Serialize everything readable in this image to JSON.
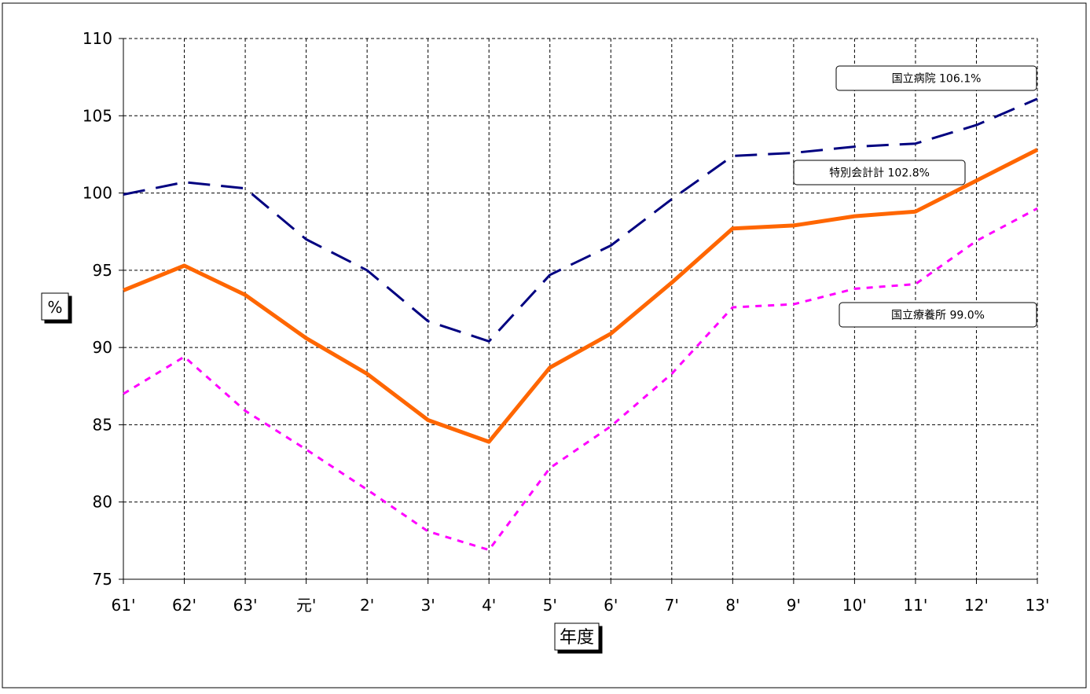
{
  "chart_data": {
    "type": "line",
    "categories": [
      "61'",
      "62'",
      "63'",
      "元'",
      "2'",
      "3'",
      "4'",
      "5'",
      "6'",
      "7'",
      "8'",
      "9'",
      "10'",
      "11'",
      "12'",
      "13'"
    ],
    "ylabel": "%",
    "xlabel": "年度",
    "ylim": [
      75,
      110
    ],
    "yticks": [
      75,
      80,
      85,
      90,
      95,
      100,
      105,
      110
    ],
    "grid": true,
    "series": [
      {
        "name": "国立病院",
        "label": "国立病院 106.1%",
        "style": "dashed",
        "color": "#000080",
        "values": [
          99.9,
          100.7,
          100.3,
          97.0,
          95.0,
          91.7,
          90.4,
          94.7,
          96.6,
          99.6,
          102.4,
          102.6,
          103.0,
          103.2,
          104.4,
          106.1
        ]
      },
      {
        "name": "特別会計計",
        "label": "特別会計計 102.8%",
        "style": "solid",
        "color": "#FF6600",
        "values": [
          93.7,
          95.3,
          93.4,
          90.6,
          88.3,
          85.3,
          83.9,
          88.7,
          90.9,
          94.2,
          97.7,
          97.9,
          98.5,
          98.8,
          100.8,
          102.8
        ]
      },
      {
        "name": "国立療養所",
        "label": "国立療養所 99.0%",
        "style": "dotted",
        "color": "#FF00FF",
        "values": [
          87.0,
          89.4,
          85.9,
          83.4,
          80.8,
          78.1,
          76.9,
          82.2,
          84.9,
          88.3,
          92.6,
          92.8,
          93.8,
          94.1,
          96.9,
          99.0
        ]
      }
    ]
  }
}
